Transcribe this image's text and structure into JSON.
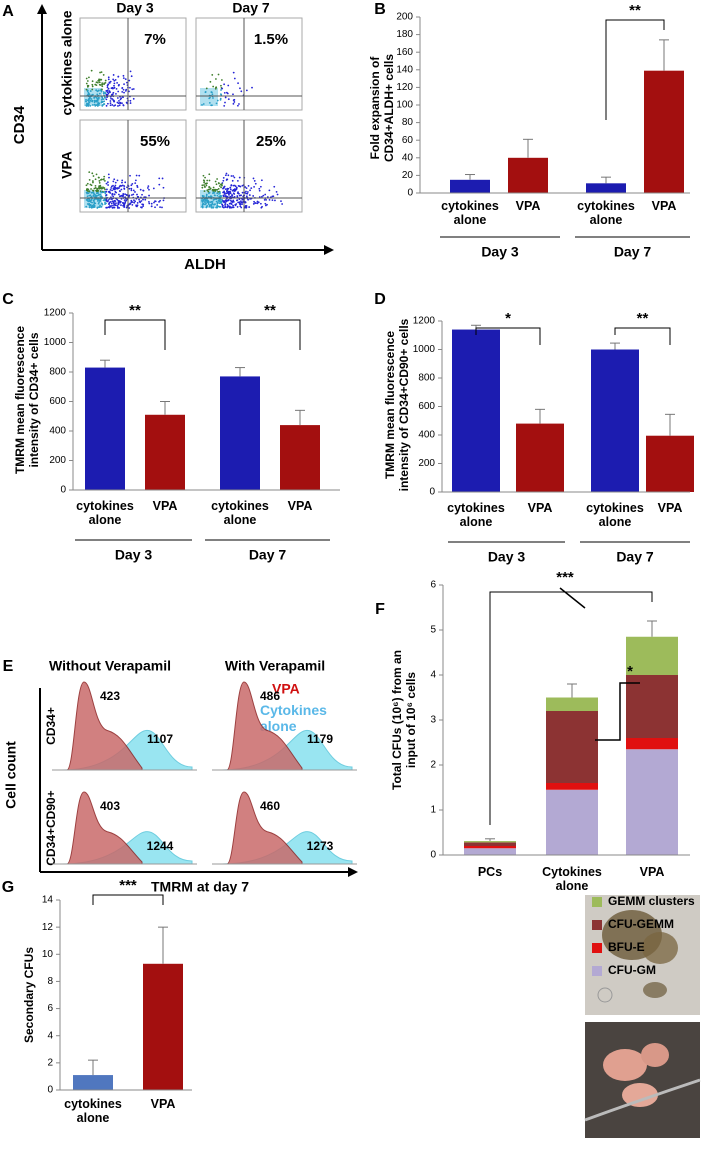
{
  "panel_a": {
    "label": "A",
    "columns": [
      "Day 3",
      "Day 7"
    ],
    "rows": [
      "cytokines alone",
      "VPA"
    ],
    "percentages": [
      [
        "7%",
        "1.5%"
      ],
      [
        "55%",
        "25%"
      ]
    ],
    "y_axis": "CD34",
    "x_axis": "ALDH"
  },
  "chart_data": [
    {
      "panel": "B",
      "type": "bar",
      "y_label": "Fold expansion of CD34+ALDH+ cells",
      "categories": [
        "cytokines alone",
        "VPA",
        "cytokines alone",
        "VPA"
      ],
      "groups": [
        "Day 3",
        "Day 7"
      ],
      "values": [
        15,
        40,
        11,
        139
      ],
      "errors": [
        6,
        21,
        7,
        35
      ],
      "colors": [
        "#1c1cb0",
        "#a30f0f",
        "#1c1cb0",
        "#a30f0f"
      ],
      "ylim": [
        0,
        200
      ],
      "yticks": [
        0,
        20,
        40,
        60,
        80,
        100,
        120,
        140,
        160,
        180,
        200
      ],
      "annotations": [
        "**"
      ]
    },
    {
      "panel": "C",
      "type": "bar",
      "y_label": "TMRM mean fluorescence intensity of CD34+ cells",
      "categories": [
        "cytokines alone",
        "VPA",
        "cytokines alone",
        "VPA"
      ],
      "groups": [
        "Day 3",
        "Day 7"
      ],
      "values": [
        830,
        510,
        770,
        440
      ],
      "errors": [
        50,
        90,
        60,
        100
      ],
      "colors": [
        "#1c1cb0",
        "#a30f0f",
        "#1c1cb0",
        "#a30f0f"
      ],
      "ylim": [
        0,
        1200
      ],
      "yticks": [
        0,
        200,
        400,
        600,
        800,
        1000,
        1200
      ],
      "annotations": [
        "**",
        "**"
      ]
    },
    {
      "panel": "D",
      "type": "bar",
      "y_label": "TMRM mean fluorescence intensity of CD34+CD90+ cells",
      "categories": [
        "cytokines alone",
        "VPA",
        "cytokines alone",
        "VPA"
      ],
      "groups": [
        "Day 3",
        "Day 7"
      ],
      "values": [
        1140,
        480,
        1000,
        395
      ],
      "errors": [
        30,
        100,
        45,
        150
      ],
      "colors": [
        "#1c1cb0",
        "#a30f0f",
        "#1c1cb0",
        "#a30f0f"
      ],
      "ylim": [
        0,
        1200
      ],
      "yticks": [
        0,
        200,
        400,
        600,
        800,
        1000,
        1200
      ],
      "annotations": [
        "*",
        "**"
      ]
    },
    {
      "panel": "F",
      "type": "stacked_bar",
      "y_label": "Total CFUs (10⁶) from an input of 10⁶ cells",
      "categories": [
        "PCs",
        "Cytokines alone",
        "VPA"
      ],
      "series": [
        {
          "name": "CFU-GM",
          "color": "#b3a9d3",
          "values": [
            0.15,
            1.45,
            2.35
          ],
          "errors": [
            null,
            null,
            null
          ]
        },
        {
          "name": "BFU-E",
          "color": "#e01010",
          "values": [
            0.05,
            0.15,
            0.25
          ],
          "errors": [
            null,
            0.15,
            0.2
          ]
        },
        {
          "name": "CFU-GEMM",
          "color": "#8c3333",
          "values": [
            0.08,
            1.6,
            1.4
          ],
          "errors": [
            null,
            null,
            0.5
          ]
        },
        {
          "name": "GEMM clusters",
          "color": "#9dbb5b",
          "values": [
            0.03,
            0.3,
            0.85
          ],
          "errors": [
            0.05,
            0.3,
            0.35
          ]
        }
      ],
      "ylim": [
        0,
        6
      ],
      "yticks": [
        0,
        1,
        2,
        3,
        4,
        5,
        6
      ],
      "annotations": [
        "***",
        "*"
      ]
    },
    {
      "panel": "G",
      "type": "bar",
      "y_label": "Secondary CFUs",
      "categories": [
        "cytokines alone",
        "VPA"
      ],
      "values": [
        1.1,
        9.3
      ],
      "errors": [
        1.1,
        2.7
      ],
      "colors": [
        "#5077bf",
        "#a30f0f"
      ],
      "ylim": [
        0,
        14
      ],
      "yticks": [
        0,
        2,
        4,
        6,
        8,
        10,
        12,
        14
      ],
      "annotations": [
        "***"
      ]
    }
  ],
  "panel_e": {
    "label": "E",
    "columns": [
      "Without Verapamil",
      "With Verapamil"
    ],
    "rows": [
      "CD34+",
      "CD34+CD90+"
    ],
    "legend": [
      "VPA",
      "Cytokines alone"
    ],
    "peaks": [
      [
        [
          423,
          1107
        ],
        [
          486,
          1179
        ]
      ],
      [
        [
          403,
          1244
        ],
        [
          460,
          1273
        ]
      ]
    ],
    "y_axis": "Cell count",
    "x_axis": "TMRM at day 7"
  }
}
